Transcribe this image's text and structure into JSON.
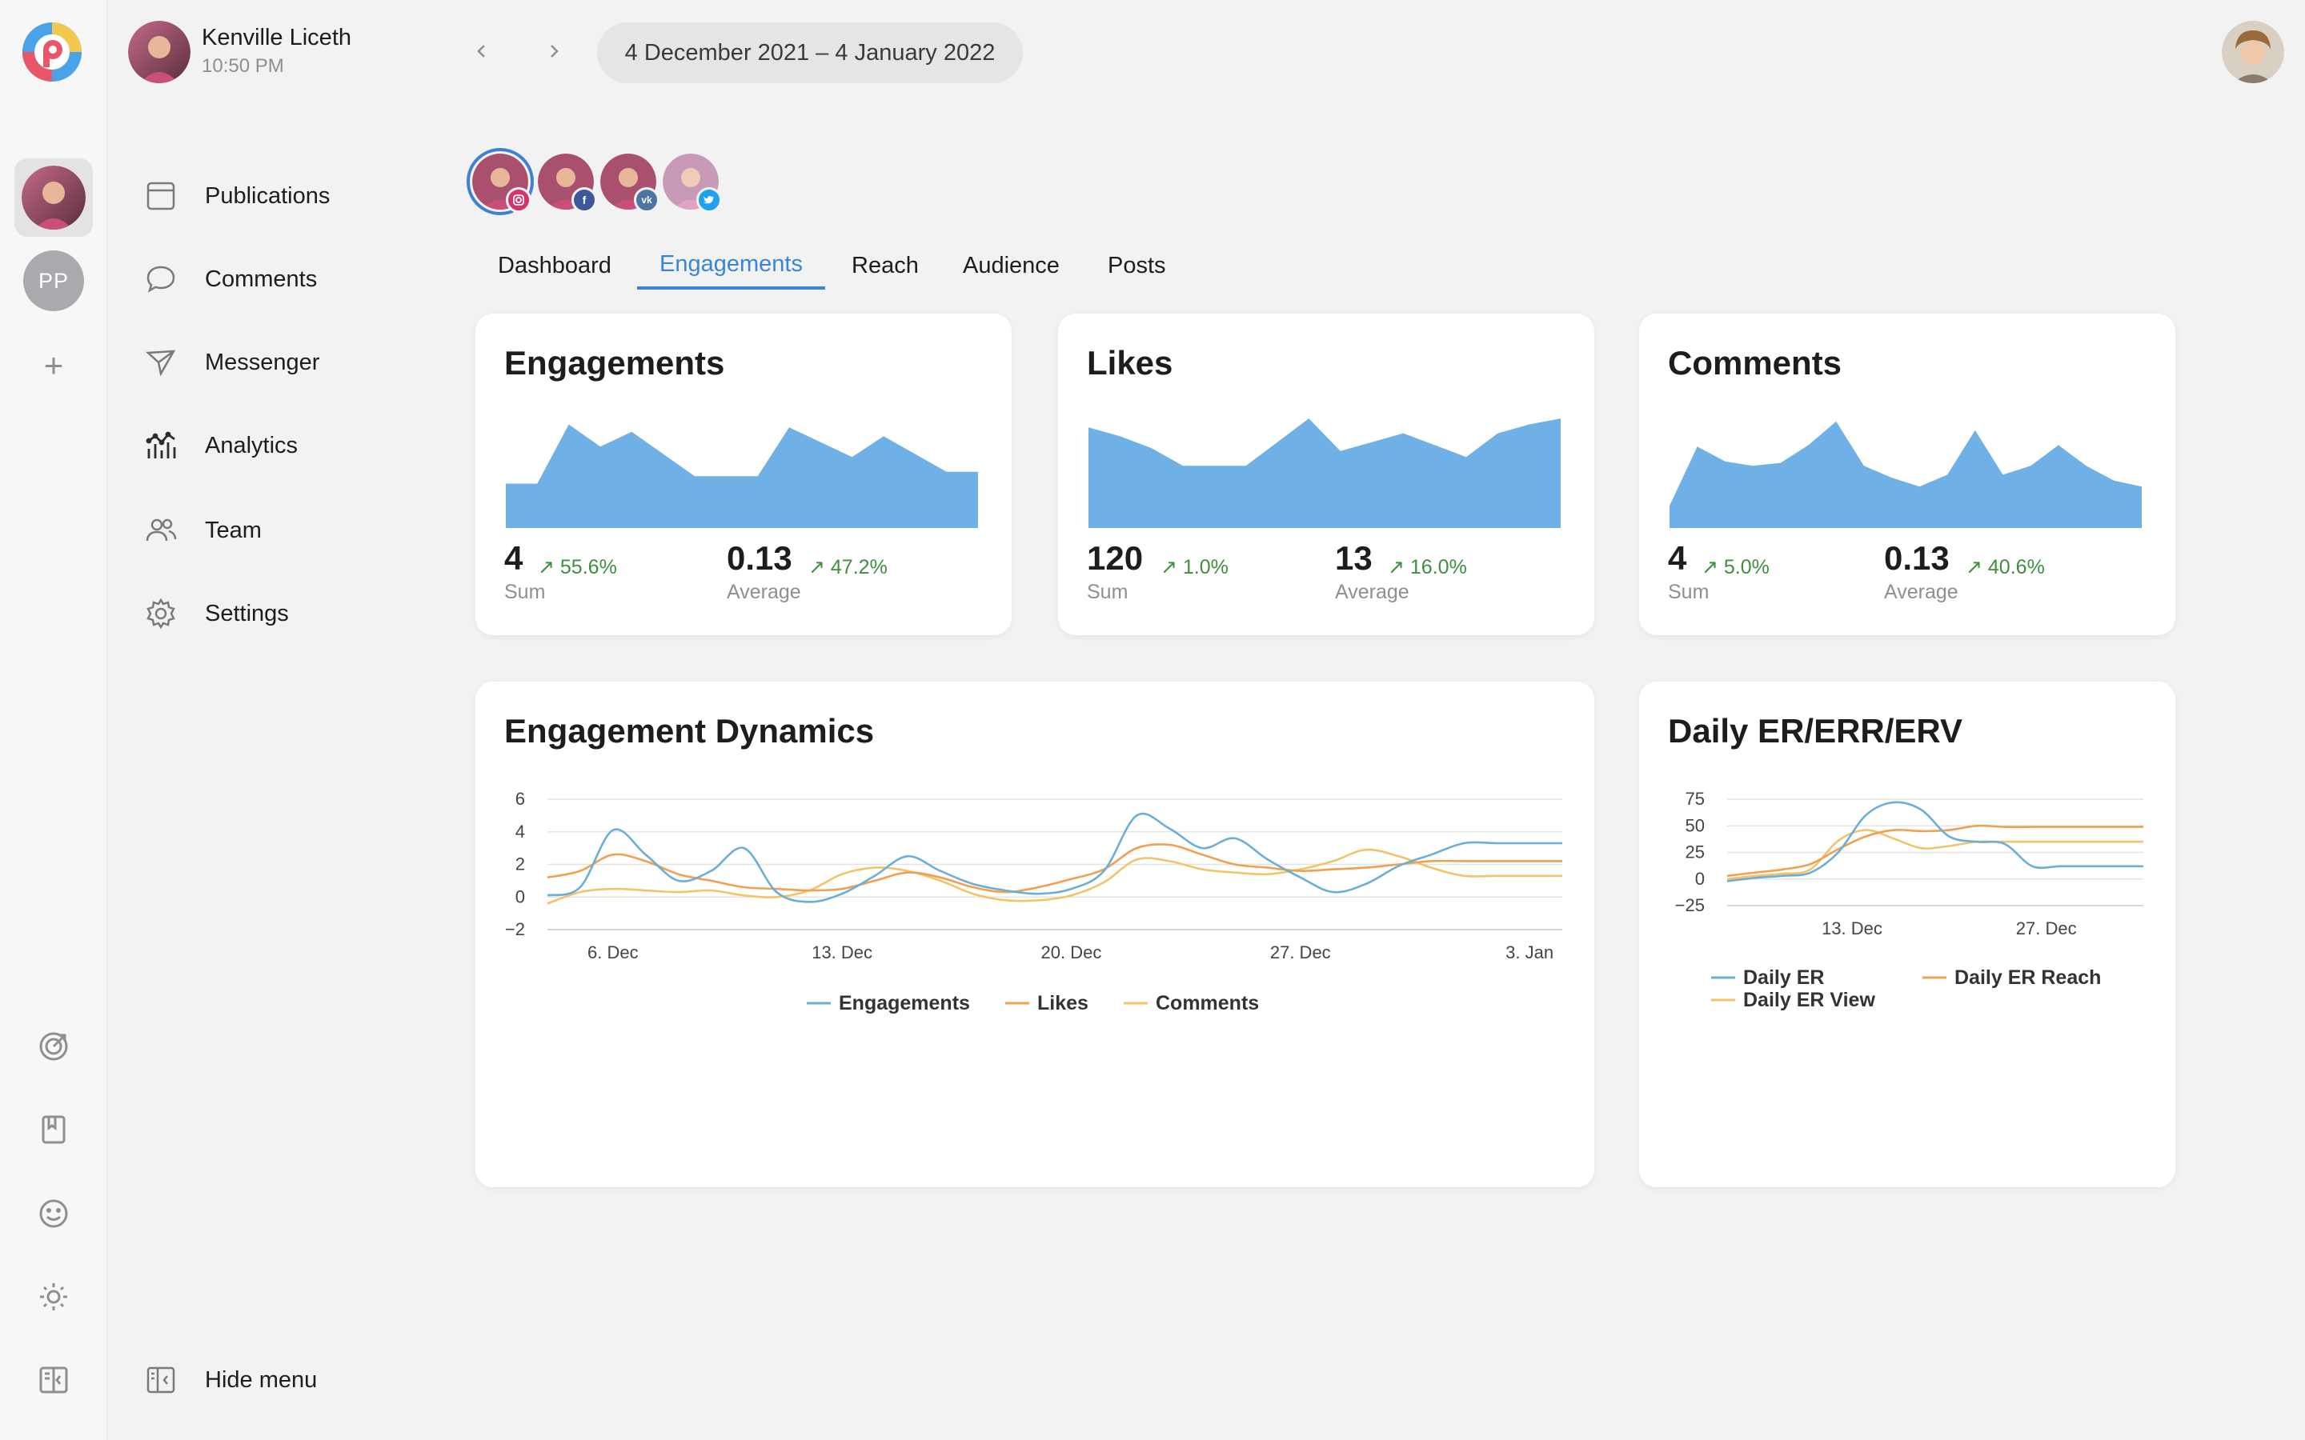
{
  "header": {
    "account_name": "Kenville Liceth",
    "account_time": "10:50 PM",
    "date_range": "4 December 2021 – 4 January 2022"
  },
  "rail": {
    "account_initials": "PP"
  },
  "menu": {
    "items": [
      {
        "label": "Publications",
        "icon": "calendar-icon"
      },
      {
        "label": "Comments",
        "icon": "speech-bubble-icon"
      },
      {
        "label": "Messenger",
        "icon": "paper-plane-icon"
      },
      {
        "label": "Analytics",
        "icon": "analytics-icon"
      },
      {
        "label": "Team",
        "icon": "team-icon"
      },
      {
        "label": "Settings",
        "icon": "gear-icon"
      }
    ],
    "hide_label": "Hide menu"
  },
  "channels": [
    {
      "network": "instagram",
      "color": "#d6336c"
    },
    {
      "network": "facebook",
      "color": "#3b5998"
    },
    {
      "network": "vk",
      "color": "#4c75a3"
    },
    {
      "network": "twitter",
      "color": "#1da1f2"
    }
  ],
  "tabs": {
    "items": [
      "Dashboard",
      "Engagements",
      "Reach",
      "Audience",
      "Posts"
    ],
    "active": "Engagements"
  },
  "summary_cards": [
    {
      "title": "Engagements",
      "sum": "4",
      "sum_change": "55.6%",
      "sum_label": "Sum",
      "avg": "0.13",
      "avg_change": "47.2%",
      "avg_label": "Average",
      "spark": [
        3,
        3,
        7,
        5.5,
        6.5,
        5,
        3.5,
        3.5,
        3.5,
        6.8,
        5.8,
        4.8,
        6.2,
        5,
        3.8,
        3.8
      ]
    },
    {
      "title": "Likes",
      "sum": "120",
      "sum_change": "1.0%",
      "sum_label": "Sum",
      "avg": "13",
      "avg_change": "16.0%",
      "avg_label": "Average",
      "spark": [
        6.8,
        6.2,
        5.4,
        4.2,
        4.2,
        4.2,
        5.8,
        7.4,
        5.2,
        5.8,
        6.4,
        5.6,
        4.8,
        6.4,
        7.0,
        7.4
      ]
    },
    {
      "title": "Comments",
      "sum": "4",
      "sum_change": "5.0%",
      "sum_label": "Sum",
      "avg": "0.13",
      "avg_change": "40.6%",
      "avg_label": "Average",
      "spark": [
        1.5,
        5.5,
        4.5,
        4.2,
        4.4,
        5.6,
        7.2,
        4.2,
        3.4,
        2.8,
        3.6,
        6.6,
        3.6,
        4.2,
        5.6,
        4.2,
        3.2,
        2.8
      ]
    }
  ],
  "colors": {
    "accent": "#3a86d4",
    "spark_fill": "#6fb0e6",
    "engagements": "#6baed6",
    "likes": "#f0a050",
    "comments": "#f2c46a",
    "positive": "#3f8f3f"
  },
  "engagement_dynamics": {
    "title": "Engagement Dynamics"
  },
  "daily_er": {
    "title": "Daily ER/ERR/ERV"
  },
  "chart_data": [
    {
      "type": "line",
      "title": "Engagement Dynamics",
      "x_ticks": [
        "6. Dec",
        "13. Dec",
        "20. Dec",
        "27. Dec",
        "3. Jan"
      ],
      "x_tick_days": [
        2,
        9,
        16,
        23,
        30
      ],
      "x": [
        "4. Dec",
        "5. Dec",
        "6. Dec",
        "7. Dec",
        "8. Dec",
        "9. Dec",
        "10. Dec",
        "11. Dec",
        "12. Dec",
        "13. Dec",
        "14. Dec",
        "15. Dec",
        "16. Dec",
        "17. Dec",
        "18. Dec",
        "19. Dec",
        "20. Dec",
        "21. Dec",
        "22. Dec",
        "23. Dec",
        "24. Dec",
        "25. Dec",
        "26. Dec",
        "27. Dec",
        "28. Dec",
        "29. Dec",
        "30. Dec",
        "31. Dec",
        "1. Jan",
        "2. Jan",
        "3. Jan",
        "4. Jan"
      ],
      "ylim": [
        -2,
        6
      ],
      "y_ticks": [
        -2,
        0,
        2,
        4,
        6
      ],
      "grid": true,
      "legend": "bottom",
      "series": [
        {
          "name": "Engagements",
          "values": [
            0.1,
            0.6,
            4.1,
            2.6,
            1.0,
            1.6,
            3.0,
            0.3,
            -0.3,
            0.2,
            1.3,
            2.5,
            1.6,
            0.8,
            0.4,
            0.2,
            0.5,
            1.6,
            5.0,
            4.2,
            3.0,
            3.6,
            2.3,
            1.2,
            0.3,
            0.8,
            1.9,
            2.6,
            3.3,
            3.3,
            3.3,
            3.3
          ]
        },
        {
          "name": "Likes",
          "values": [
            1.2,
            1.6,
            2.6,
            2.2,
            1.4,
            1.0,
            0.6,
            0.5,
            0.4,
            0.5,
            1.0,
            1.5,
            1.2,
            0.6,
            0.3,
            0.6,
            1.1,
            1.7,
            3.0,
            3.2,
            2.6,
            2.0,
            1.8,
            1.6,
            1.7,
            1.8,
            2.0,
            2.2,
            2.2,
            2.2,
            2.2,
            2.2
          ]
        },
        {
          "name": "Comments",
          "values": [
            -0.4,
            0.3,
            0.5,
            0.4,
            0.3,
            0.4,
            0.1,
            0.0,
            0.4,
            1.4,
            1.8,
            1.6,
            1.0,
            0.2,
            -0.2,
            -0.2,
            0.1,
            0.9,
            2.3,
            2.2,
            1.7,
            1.5,
            1.4,
            1.7,
            2.2,
            2.9,
            2.5,
            1.8,
            1.3,
            1.3,
            1.3,
            1.3
          ]
        }
      ]
    },
    {
      "type": "line",
      "title": "Daily ER/ERR/ERV",
      "x_ticks": [
        "13. Dec",
        "27. Dec"
      ],
      "x_tick_days": [
        9,
        23
      ],
      "x": [
        "4. Dec",
        "6. Dec",
        "8. Dec",
        "10. Dec",
        "12. Dec",
        "14. Dec",
        "16. Dec",
        "18. Dec",
        "20. Dec",
        "22. Dec",
        "24. Dec",
        "26. Dec",
        "28. Dec",
        "30. Dec",
        "1. Jan",
        "3. Jan"
      ],
      "ylim": [
        -25,
        75
      ],
      "y_ticks": [
        -25,
        0,
        25,
        50,
        75
      ],
      "grid": true,
      "legend": "bottom",
      "series": [
        {
          "name": "Daily ER",
          "values": [
            -2,
            1,
            3,
            6,
            25,
            60,
            72,
            65,
            40,
            35,
            33,
            12,
            12,
            12,
            12,
            12
          ]
        },
        {
          "name": "Daily ER Reach",
          "values": [
            3,
            6,
            9,
            14,
            28,
            40,
            46,
            45,
            46,
            50,
            49,
            49,
            49,
            49,
            49,
            49
          ]
        },
        {
          "name": "Daily ER View",
          "values": [
            0,
            3,
            5,
            9,
            36,
            46,
            38,
            29,
            31,
            35,
            35,
            35,
            35,
            35,
            35,
            35
          ]
        }
      ]
    }
  ]
}
